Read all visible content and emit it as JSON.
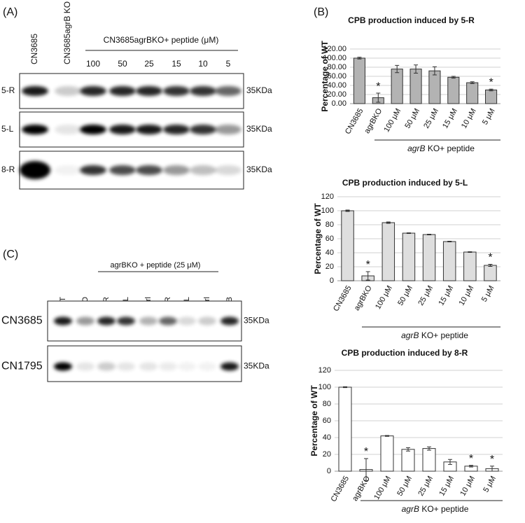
{
  "panel_a": {
    "label": "(A)",
    "lanes": [
      "CN3685",
      "CN3685agrB KO"
    ],
    "peptide_header": "CN3685agrBKO+ peptide (μM)",
    "concentrations": [
      "100",
      "50",
      "25",
      "15",
      "10",
      "5"
    ],
    "rows": [
      "5-R",
      "5-L",
      "8-R"
    ],
    "size_labels": [
      "35KDa",
      "35KDa",
      "35KDa"
    ]
  },
  "panel_b_label": "(B)",
  "panel_c": {
    "label": "(C)",
    "header": "agrBKO + peptide (25 μM)",
    "lanes": [
      "WT",
      "agrKO",
      "5-R",
      "5-L",
      "5Ctrl",
      "8-R",
      "8-L",
      "8Ctrl",
      "CPB"
    ],
    "rows": [
      "CN3685",
      "CN1795"
    ],
    "size_labels": [
      "35KDa",
      "35KDa"
    ]
  },
  "chart_data": [
    {
      "type": "bar",
      "title": "CPB production induced by 5-R",
      "y_label": "Percentage of WT",
      "categories": [
        "CN3685",
        "agrBKO",
        "100 μM",
        "50 μM",
        "25 μM",
        "15 μM",
        "10 μM",
        "5 μM"
      ],
      "values": [
        100,
        13,
        76,
        76,
        72,
        58,
        46,
        30
      ],
      "errors": [
        2,
        10,
        8,
        9,
        9,
        2,
        2,
        2
      ],
      "significance": [
        null,
        "*",
        null,
        null,
        null,
        null,
        null,
        "*"
      ],
      "group_label": [
        "agrB",
        " KO+ peptide"
      ],
      "color": "#b3b3b3",
      "grid": true,
      "ylim": [
        0,
        120
      ],
      "yticks": [
        {
          "value": 0,
          "label": "0.00"
        },
        {
          "value": 20,
          "label": "20.00"
        },
        {
          "value": 40,
          "label": "40.00"
        },
        {
          "value": 60,
          "label": "60.00"
        },
        {
          "value": 80,
          "label": "80.00"
        },
        {
          "value": 100,
          "label": "100.00"
        },
        {
          "value": 120,
          "label": "120.00"
        }
      ]
    },
    {
      "type": "bar",
      "title": "CPB production induced by 5-L",
      "y_label": "Percentage of WT",
      "categories": [
        "CN3685",
        "agrBKO",
        "100 μM",
        "50 μM",
        "25 μM",
        "15 μM",
        "10 μM",
        "5 μM"
      ],
      "values": [
        100,
        7,
        83,
        68,
        66,
        56,
        41,
        22
      ],
      "errors": [
        1,
        6,
        1,
        0.5,
        0.5,
        0.5,
        0.5,
        1.5
      ],
      "significance": [
        null,
        "*",
        null,
        null,
        null,
        null,
        null,
        "*"
      ],
      "group_label": [
        "agrB",
        " KO+ peptide"
      ],
      "color": "#dedede",
      "grid": true,
      "ylim": [
        0,
        120
      ],
      "yticks": [
        0,
        20,
        40,
        60,
        80,
        100,
        120
      ]
    },
    {
      "type": "bar",
      "title": "CPB production induced by 8-R",
      "y_label": "Percentage of WT",
      "categories": [
        "CN3685",
        "agrBKO",
        "100 μM",
        "50 μM",
        "25 μM",
        "15 μM",
        "10 μM",
        "5 μM"
      ],
      "values": [
        100,
        2,
        42,
        26,
        27,
        11,
        6,
        3
      ],
      "errors": [
        0.5,
        13,
        0.5,
        2,
        2,
        3,
        1,
        3
      ],
      "significance": [
        null,
        "*",
        null,
        null,
        null,
        null,
        "*",
        "*"
      ],
      "group_label": [
        "agrB",
        " KO+ peptide"
      ],
      "color": "#ffffff",
      "grid": true,
      "ylim": [
        0,
        120
      ],
      "yticks": [
        0,
        20,
        40,
        60,
        80,
        100,
        120
      ]
    }
  ]
}
